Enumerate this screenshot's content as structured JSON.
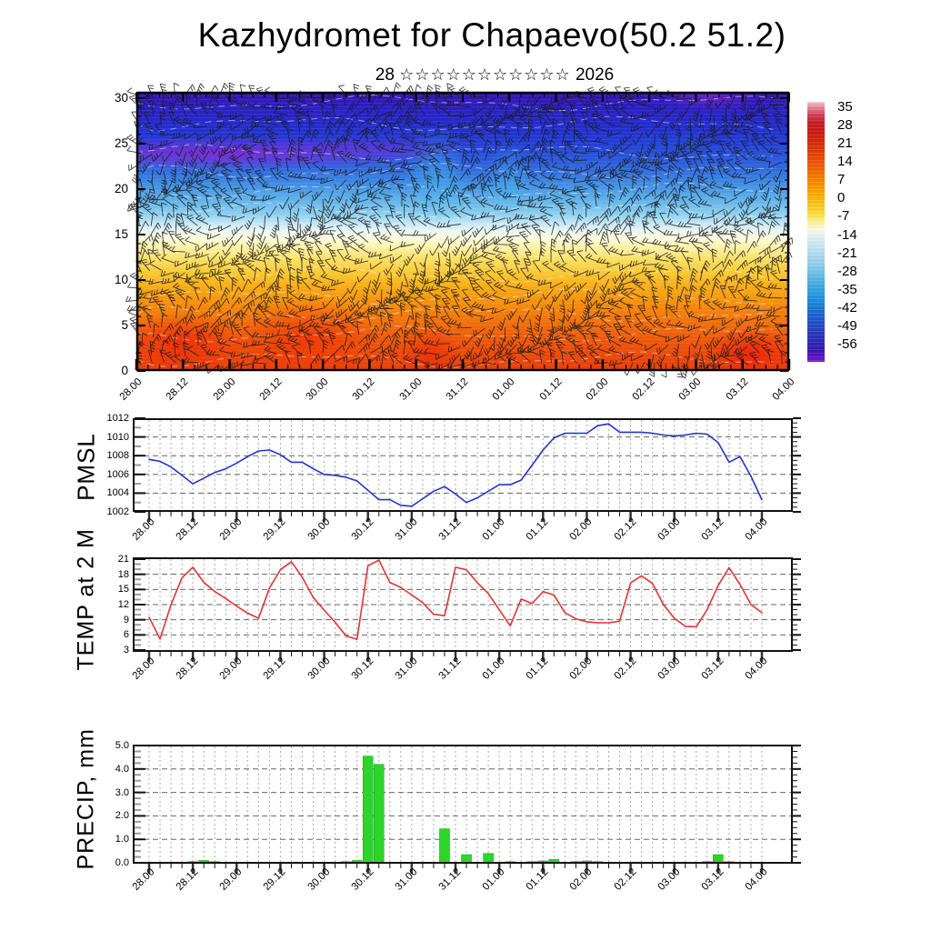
{
  "page": {
    "title": "Kazhydromet for Chapaevo(50.2 51.2)",
    "subtitle_day": "28",
    "subtitle_stars": "☆☆☆☆☆☆☆☆☆☆☆",
    "subtitle_year": "2026"
  },
  "time_axis": {
    "labels": [
      "28.00",
      "28.12",
      "29.00",
      "29.12",
      "30.00",
      "30.12",
      "31.00",
      "31.12",
      "01.00",
      "01.12",
      "02.00",
      "02.12",
      "03.00",
      "03.12",
      "04.00"
    ],
    "step_hours": 3,
    "n_steps": 57
  },
  "chart_data": [
    {
      "id": "wind-temperature-cross-section",
      "type": "heatmap",
      "ylabel": "",
      "y_ticks": [
        0,
        5,
        10,
        15,
        20,
        25,
        30
      ],
      "ylim": [
        0,
        30.7
      ],
      "shading": "temperature, warm red-orange below ~13, yellow-white band 14-17, cyan-blue 17-22, deep blue-violet 23-30, purple streak near 23 on left third",
      "overlays": [
        "dense black wind barbs",
        "thin white dashed contour lines"
      ],
      "colorbar": {
        "tick_labels": [
          35,
          28,
          21,
          14,
          7,
          0,
          -7,
          -14,
          -21,
          -28,
          -35,
          -42,
          -49,
          -56
        ]
      }
    },
    {
      "id": "pmsl",
      "type": "line",
      "ylabel": "PMSL",
      "line_color": "#2233cc",
      "ylim": [
        1002,
        1012
      ],
      "y_ticks": [
        1002,
        1004,
        1006,
        1008,
        1010,
        1012
      ],
      "values": [
        1007.6,
        1007.4,
        1006.8,
        1005.9,
        1005.0,
        1005.6,
        1006.2,
        1006.6,
        1007.2,
        1007.9,
        1008.5,
        1008.6,
        1008.1,
        1007.3,
        1007.3,
        1006.6,
        1006.0,
        1005.9,
        1005.7,
        1005.3,
        1004.3,
        1003.3,
        1003.3,
        1002.7,
        1002.6,
        1003.4,
        1004.2,
        1004.7,
        1003.9,
        1003.0,
        1003.5,
        1004.2,
        1004.9,
        1004.9,
        1005.4,
        1007.0,
        1008.6,
        1009.9,
        1010.4,
        1010.4,
        1010.4,
        1011.2,
        1011.4,
        1010.5,
        1010.5,
        1010.5,
        1010.4,
        1010.2,
        1010.1,
        1010.2,
        1010.4,
        1010.3,
        1009.4,
        1007.3,
        1007.9,
        1005.8,
        1003.3
      ]
    },
    {
      "id": "temp-2m",
      "type": "line",
      "ylabel": "TEMP at 2 M",
      "line_color": "#e03434",
      "ylim": [
        3,
        21
      ],
      "y_ticks": [
        3,
        6,
        9,
        12,
        15,
        18,
        21
      ],
      "values": [
        9.5,
        5.2,
        12.0,
        17.3,
        19.4,
        16.4,
        14.6,
        13.2,
        11.7,
        10.3,
        9.3,
        15.3,
        18.9,
        20.5,
        17.4,
        13.4,
        10.9,
        8.5,
        5.8,
        5.1,
        19.7,
        20.8,
        16.4,
        15.4,
        13.9,
        12.4,
        10.1,
        9.8,
        19.4,
        18.9,
        16.3,
        14.2,
        11.0,
        7.8,
        13.1,
        12.2,
        14.6,
        13.9,
        10.4,
        9.2,
        8.6,
        8.4,
        8.4,
        8.7,
        16.3,
        17.7,
        16.2,
        12.0,
        9.3,
        7.7,
        7.6,
        11.0,
        15.8,
        19.3,
        16.0,
        12.0,
        10.4
      ]
    },
    {
      "id": "precip",
      "type": "bar",
      "ylabel": "PRECIP, mm",
      "bar_color": "#2bd62b",
      "ylim": [
        0,
        5
      ],
      "y_tick_labels": [
        "0.0",
        "1.0",
        "2.0",
        "3.0",
        "4.0",
        "5.0"
      ],
      "y_ticks": [
        0,
        1,
        2,
        3,
        4,
        5
      ],
      "values": [
        0,
        0,
        0,
        0,
        0.05,
        0.1,
        0.05,
        0,
        0,
        0,
        0,
        0,
        0,
        0,
        0,
        0,
        0,
        0,
        0.05,
        0.1,
        4.55,
        4.2,
        0,
        0,
        0,
        0,
        0,
        1.45,
        0,
        0.35,
        0,
        0.4,
        0,
        0.05,
        0,
        0.05,
        0.08,
        0.15,
        0,
        0.05,
        0.08,
        0.05,
        0,
        0,
        0.03,
        0.03,
        0,
        0,
        0,
        0,
        0,
        0.05,
        0.35,
        0.05,
        0,
        0,
        0
      ]
    }
  ]
}
